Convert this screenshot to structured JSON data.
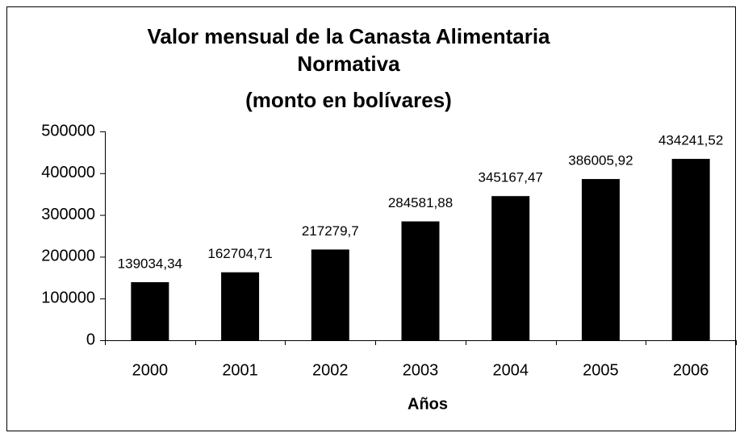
{
  "chart_data": {
    "type": "bar",
    "title": [
      "Valor mensual de la Canasta Alimentaria",
      "Normativa"
    ],
    "subtitle": "(monto en bolívares)",
    "x_label": "Años",
    "categories": [
      "2000",
      "2001",
      "2002",
      "2003",
      "2004",
      "2005",
      "2006"
    ],
    "values": [
      139034.34,
      162704.71,
      217279.7,
      284581.88,
      345167.47,
      386005.92,
      434241.52
    ],
    "value_labels": [
      "139034,34",
      "162704,71",
      "217279,7",
      "284581,88",
      "345167,47",
      "386005,92",
      "434241,52"
    ],
    "color": "#000000",
    "ylim": [
      0,
      500000
    ],
    "yticks": [
      0,
      100000,
      200000,
      300000,
      400000,
      500000
    ],
    "grid": false
  }
}
